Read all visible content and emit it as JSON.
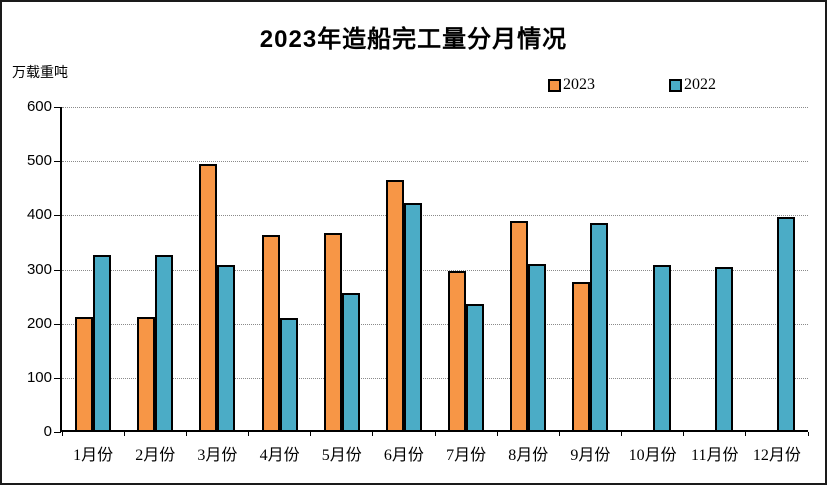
{
  "chart_data": {
    "type": "bar",
    "title": "2023年造船完工量分月情况",
    "unit_label": "万载重吨",
    "categories": [
      "1月份",
      "2月份",
      "3月份",
      "4月份",
      "5月份",
      "6月份",
      "7月份",
      "8月份",
      "9月份",
      "10月份",
      "11月份",
      "12月份"
    ],
    "series": [
      {
        "name": "2023",
        "color": "#F79646",
        "values": [
          212,
          212,
          495,
          363,
          368,
          466,
          297,
          390,
          277,
          null,
          null,
          null
        ]
      },
      {
        "name": "2022",
        "color": "#4BACC6",
        "values": [
          326,
          327,
          309,
          210,
          257,
          422,
          236,
          310,
          386,
          308,
          304,
          397
        ]
      }
    ],
    "ylim": [
      0,
      600
    ],
    "yticks": [
      0,
      100,
      200,
      300,
      400,
      500,
      600
    ],
    "xlabel": "",
    "ylabel": "万载重吨",
    "grid": "horizontal-dotted",
    "legend_position": "top-right",
    "bar_border_color": "#000000",
    "axis_color": "#000000"
  }
}
